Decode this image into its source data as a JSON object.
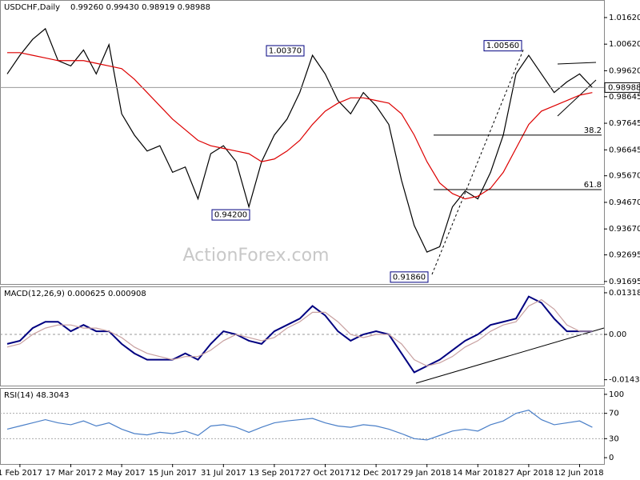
{
  "watermark": "ActionForex.com",
  "chart_data": [
    {
      "type": "line",
      "title": "USDCHF,Daily",
      "subtitle": "0.99260 0.99430 0.98919 0.98988",
      "categories": [
        null,
        "1 Feb 2017",
        null,
        null,
        null,
        "17 Mar 2017",
        null,
        null,
        null,
        "2 May 2017",
        null,
        null,
        null,
        "15 Jun 2017",
        null,
        null,
        null,
        "31 Jul 2017",
        null,
        null,
        null,
        "13 Sep 2017",
        null,
        null,
        null,
        "27 Oct 2017",
        null,
        null,
        null,
        "12 Dec 2017",
        null,
        null,
        null,
        "29 Jan 2018",
        null,
        null,
        null,
        "14 Mar 2018",
        null,
        null,
        null,
        "27 Apr 2018",
        null,
        null,
        null,
        "12 Jun 2018",
        null
      ],
      "series": [
        {
          "color": "#000000",
          "values": [
            0.995,
            1.002,
            1.008,
            1.012,
            1.0,
            0.998,
            1.004,
            0.995,
            1.006,
            0.98,
            0.972,
            0.966,
            0.968,
            0.958,
            0.96,
            0.948,
            0.965,
            0.968,
            0.962,
            0.945,
            0.962,
            0.972,
            0.978,
            0.988,
            1.002,
            0.995,
            0.985,
            0.98,
            0.988,
            0.983,
            0.976,
            0.955,
            0.938,
            0.928,
            0.93,
            0.945,
            0.951,
            0.948,
            0.958,
            0.972,
            0.995,
            1.002,
            0.995,
            0.988,
            0.992,
            0.995,
            0.9899
          ]
        },
        {
          "color": "#dd0000",
          "values": [
            1.003,
            1.003,
            1.002,
            1.001,
            1.0,
            1.0,
            1.0,
            0.999,
            0.998,
            0.997,
            0.993,
            0.988,
            0.983,
            0.978,
            0.974,
            0.97,
            0.968,
            0.967,
            0.966,
            0.965,
            0.962,
            0.963,
            0.966,
            0.97,
            0.976,
            0.981,
            0.984,
            0.986,
            0.986,
            0.985,
            0.984,
            0.98,
            0.972,
            0.962,
            0.954,
            0.95,
            0.948,
            0.949,
            0.952,
            0.958,
            0.967,
            0.976,
            0.981,
            0.983,
            0.985,
            0.987,
            0.988
          ]
        }
      ],
      "last_price": 0.98988,
      "annotations": [
        {
          "value": 1.0037,
          "label": "1.00370"
        },
        {
          "value": 0.942,
          "label": "0.94200"
        },
        {
          "value": 0.9186,
          "label": "0.91860"
        },
        {
          "value": 1.0056,
          "label": "1.00560"
        }
      ],
      "levels": [
        {
          "value": 0.972,
          "label": "38.2"
        },
        {
          "value": 0.9515,
          "label": "61.8"
        }
      ],
      "ylim": [
        0.916,
        1.0228
      ],
      "yticks": [
        {
          "value": 1.0162,
          "label": "1.01620"
        },
        {
          "value": 1.0062,
          "label": "1.00620"
        },
        {
          "value": 0.9962,
          "label": "0.99620"
        },
        0.98645,
        0.97645,
        0.96645,
        {
          "value": 0.9567,
          "label": "0.95670"
        },
        {
          "value": 0.9467,
          "label": "0.94670"
        },
        {
          "value": 0.9367,
          "label": "0.93670"
        },
        0.92695,
        0.91695
      ]
    },
    {
      "type": "line",
      "title": "MACD(12,26,9) 0.000625 0.000908",
      "series": [
        {
          "color": "#000080",
          "values": [
            -0.003,
            -0.002,
            0.002,
            0.004,
            0.004,
            0.001,
            0.003,
            0.001,
            0.001,
            -0.003,
            -0.006,
            -0.008,
            -0.008,
            -0.008,
            -0.006,
            -0.008,
            -0.003,
            0.001,
            0.0,
            -0.002,
            -0.003,
            0.001,
            0.003,
            0.005,
            0.009,
            0.006,
            0.001,
            -0.002,
            0.0,
            0.001,
            0.0,
            -0.006,
            -0.012,
            -0.01,
            -0.008,
            -0.005,
            -0.002,
            0.0,
            0.003,
            0.004,
            0.005,
            0.012,
            0.01,
            0.005,
            0.001,
            0.001,
            0.001
          ]
        },
        {
          "color": "#c8a0a0",
          "values": [
            -0.004,
            -0.003,
            0.0,
            0.002,
            0.003,
            0.003,
            0.002,
            0.002,
            0.001,
            -0.001,
            -0.004,
            -0.006,
            -0.007,
            -0.008,
            -0.007,
            -0.007,
            -0.005,
            -0.002,
            0.0,
            -0.001,
            -0.002,
            -0.001,
            0.002,
            0.004,
            0.007,
            0.007,
            0.004,
            0.0,
            -0.001,
            0.0,
            0.0,
            -0.003,
            -0.008,
            -0.01,
            -0.009,
            -0.007,
            -0.004,
            -0.002,
            0.001,
            0.003,
            0.004,
            0.009,
            0.011,
            0.008,
            0.003,
            0.001,
            0.001
          ]
        }
      ],
      "ylim": [
        -0.0162,
        0.0152
      ],
      "yticks": [
        0.013184,
        {
          "value": 0,
          "label": "0.00"
        },
        -0.014339
      ]
    },
    {
      "type": "line",
      "title": "RSI(14) 48.3043",
      "series": [
        {
          "color": "#4a7fc8",
          "values": [
            45,
            50,
            55,
            60,
            55,
            52,
            58,
            50,
            55,
            45,
            38,
            36,
            40,
            38,
            42,
            35,
            50,
            52,
            48,
            40,
            48,
            55,
            58,
            60,
            62,
            55,
            50,
            48,
            52,
            50,
            45,
            38,
            30,
            28,
            35,
            42,
            45,
            42,
            52,
            58,
            70,
            75,
            60,
            52,
            55,
            58,
            48
          ]
        }
      ],
      "levels": [
        30,
        70
      ],
      "ylim": [
        -10,
        110
      ],
      "yticks": [
        0,
        30,
        70,
        100
      ]
    }
  ]
}
